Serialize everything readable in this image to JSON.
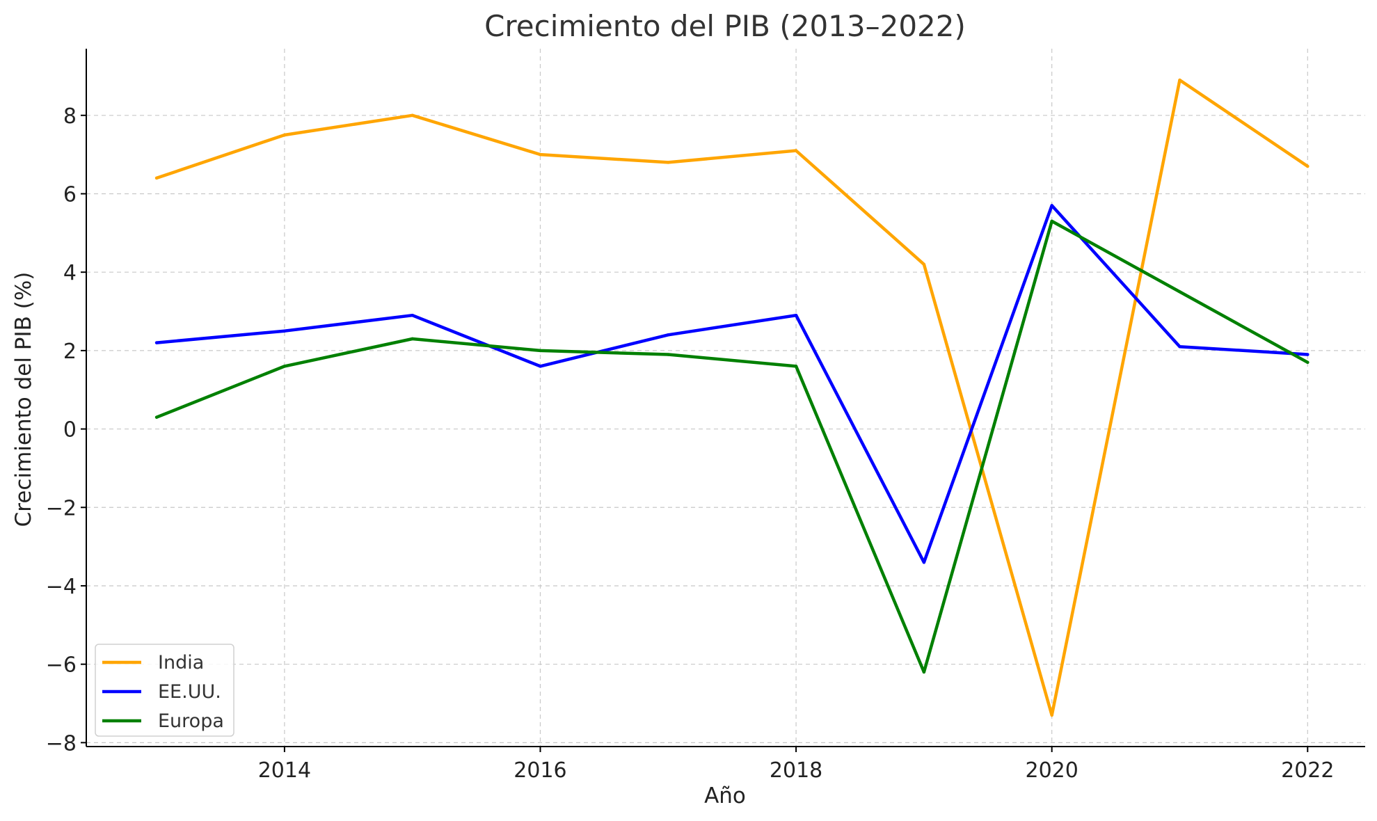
{
  "chart_data": {
    "type": "line",
    "title": "Crecimiento del PIB (2013–2022)",
    "xlabel": "Año",
    "ylabel": "Crecimiento del PIB (%)",
    "x": [
      2013,
      2014,
      2015,
      2016,
      2017,
      2018,
      2019,
      2020,
      2021,
      2022
    ],
    "xlim": [
      2012.45,
      2022.45
    ],
    "ylim": [
      -8.1,
      9.7
    ],
    "x_ticks": [
      "2014",
      "2016",
      "2018",
      "2020",
      "2022"
    ],
    "y_ticks": [
      "−8",
      "−6",
      "−4",
      "−2",
      "0",
      "2",
      "4",
      "6",
      "8"
    ],
    "grid": true,
    "legend_position": "lower-left",
    "series": [
      {
        "name": "India",
        "color": "#FFA500",
        "values": [
          6.4,
          7.5,
          8.0,
          7.0,
          6.8,
          7.1,
          4.2,
          -7.3,
          8.9,
          6.7
        ]
      },
      {
        "name": "EE.UU.",
        "color": "#0000FF",
        "values": [
          2.2,
          2.5,
          2.9,
          1.6,
          2.4,
          2.9,
          -3.4,
          5.7,
          2.1,
          1.9
        ]
      },
      {
        "name": "Europa",
        "color": "#008000",
        "values": [
          0.3,
          1.6,
          2.3,
          2.0,
          1.9,
          1.6,
          -6.2,
          5.3,
          3.5,
          1.7
        ]
      }
    ]
  }
}
